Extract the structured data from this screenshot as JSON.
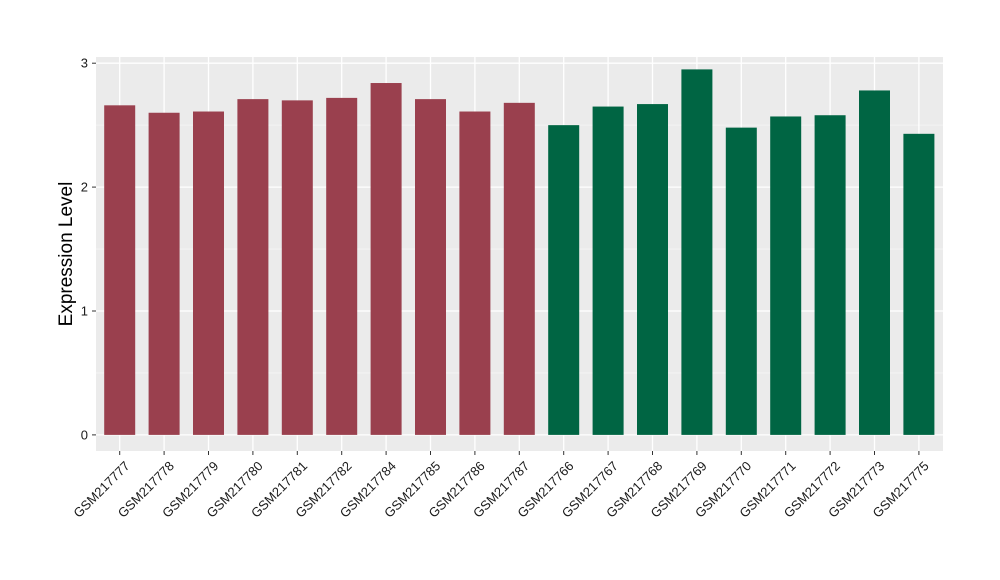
{
  "chart_data": {
    "type": "bar",
    "title": "",
    "xlabel": "",
    "ylabel": "Expression Level",
    "ylim": [
      -0.13,
      3.05
    ],
    "yticks": [
      0,
      1,
      2,
      3
    ],
    "grid": true,
    "legend": "none",
    "categories": [
      "GSM217777",
      "GSM217778",
      "GSM217779",
      "GSM217780",
      "GSM217781",
      "GSM217782",
      "GSM217784",
      "GSM217785",
      "GSM217786",
      "GSM217787",
      "GSM217766",
      "GSM217767",
      "GSM217768",
      "GSM217769",
      "GSM217770",
      "GSM217771",
      "GSM217772",
      "GSM217773",
      "GSM217775"
    ],
    "values": [
      2.66,
      2.6,
      2.61,
      2.71,
      2.7,
      2.72,
      2.84,
      2.71,
      2.61,
      2.68,
      2.5,
      2.65,
      2.67,
      2.95,
      2.48,
      2.57,
      2.58,
      2.78,
      2.43
    ],
    "groups": [
      0,
      0,
      0,
      0,
      0,
      0,
      0,
      0,
      0,
      0,
      1,
      1,
      1,
      1,
      1,
      1,
      1,
      1,
      1
    ],
    "group_colors": [
      "#9a404e",
      "#006543"
    ]
  }
}
